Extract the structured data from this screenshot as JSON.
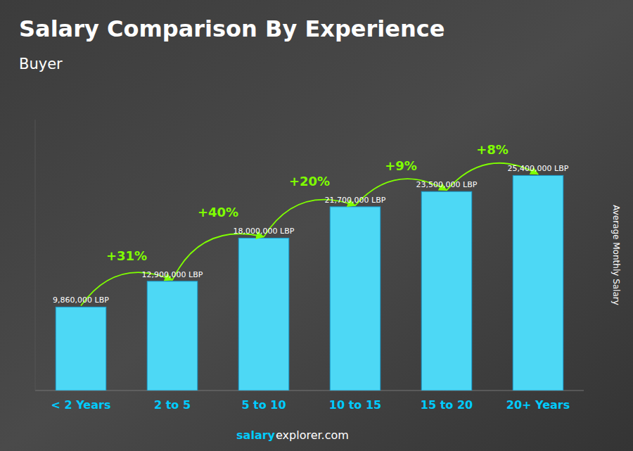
{
  "chart_data": {
    "type": "bar",
    "title": "Salary Comparison By Experience",
    "subtitle": "Buyer",
    "ylabel": "Average Monthly Salary",
    "categories": [
      "< 2 Years",
      "2 to 5",
      "5 to 10",
      "10 to 15",
      "15 to 20",
      "20+ Years"
    ],
    "values": [
      9860000,
      12900000,
      18000000,
      21700000,
      23500000,
      25400000
    ],
    "value_labels": [
      "9,860,000 LBP",
      "12,900,000 LBP",
      "18,000,000 LBP",
      "21,700,000 LBP",
      "23,500,000 LBP",
      "25,400,000 LBP"
    ],
    "data_labels": true,
    "annotations": [
      "+31%",
      "+40%",
      "+20%",
      "+9%",
      "+8%"
    ],
    "footer": [
      "salary",
      "explorer.com"
    ],
    "color": "#4dd8f5",
    "ylim": [
      0,
      32000000
    ],
    "tick_labels": "x",
    "grid": false
  }
}
